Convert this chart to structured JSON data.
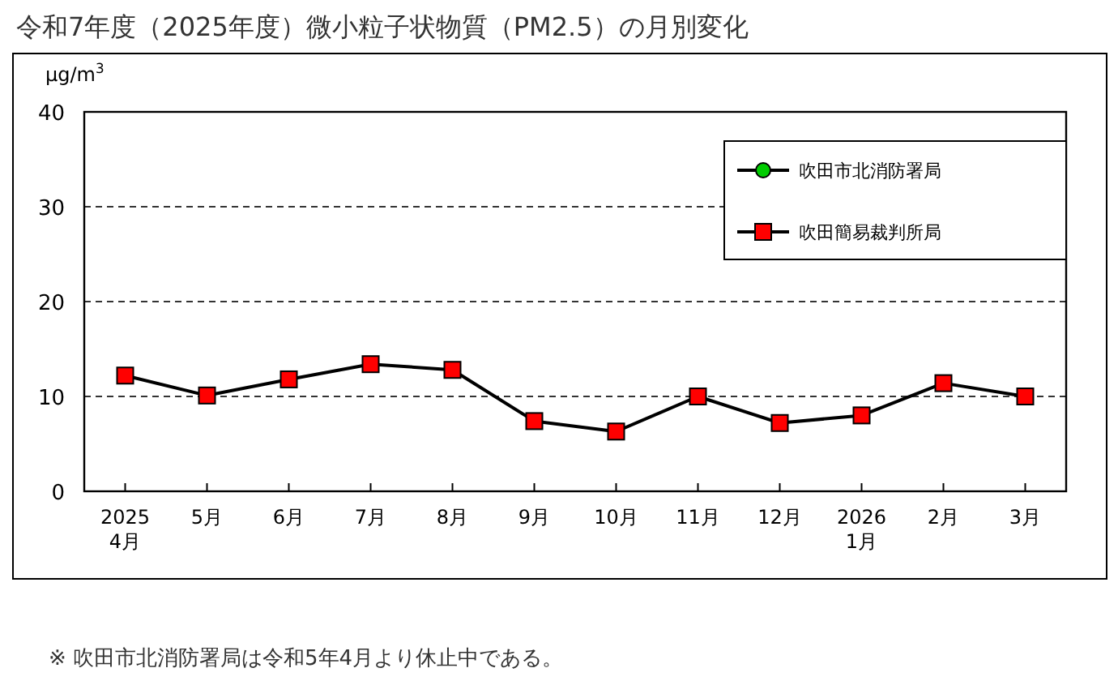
{
  "chart_data": {
    "type": "line",
    "title": "令和7年度（2025年度）微小粒子状物質（PM2.5）の月別変化",
    "ylabel": "μg/m$^{3}$",
    "categories": [
      "2025\n4月",
      "5月",
      "6月",
      "7月",
      "8月",
      "9月",
      "10月",
      "11月",
      "12月",
      "2026\n1月",
      "2月",
      "3月"
    ],
    "series": [
      {
        "name": "吹田市北消防署局",
        "color": "#00cc00",
        "marker": "circle",
        "values": [
          null,
          null,
          null,
          null,
          null,
          null,
          null,
          null,
          null,
          null,
          null,
          null
        ]
      },
      {
        "name": "吹田簡易裁判所局",
        "color": "#ff0000",
        "marker": "square",
        "values": [
          12.2,
          10.1,
          11.8,
          13.4,
          12.8,
          7.4,
          6.3,
          10.0,
          7.2,
          8.0,
          11.4,
          10.0
        ]
      }
    ],
    "ylim": [
      0,
      40
    ],
    "yticks": [
      0,
      10,
      20,
      30,
      40
    ],
    "grid": "y",
    "legend": "top right",
    "annotations": [
      "※ 吹田市北消防署局は令和5年4月より休止中である。"
    ]
  }
}
